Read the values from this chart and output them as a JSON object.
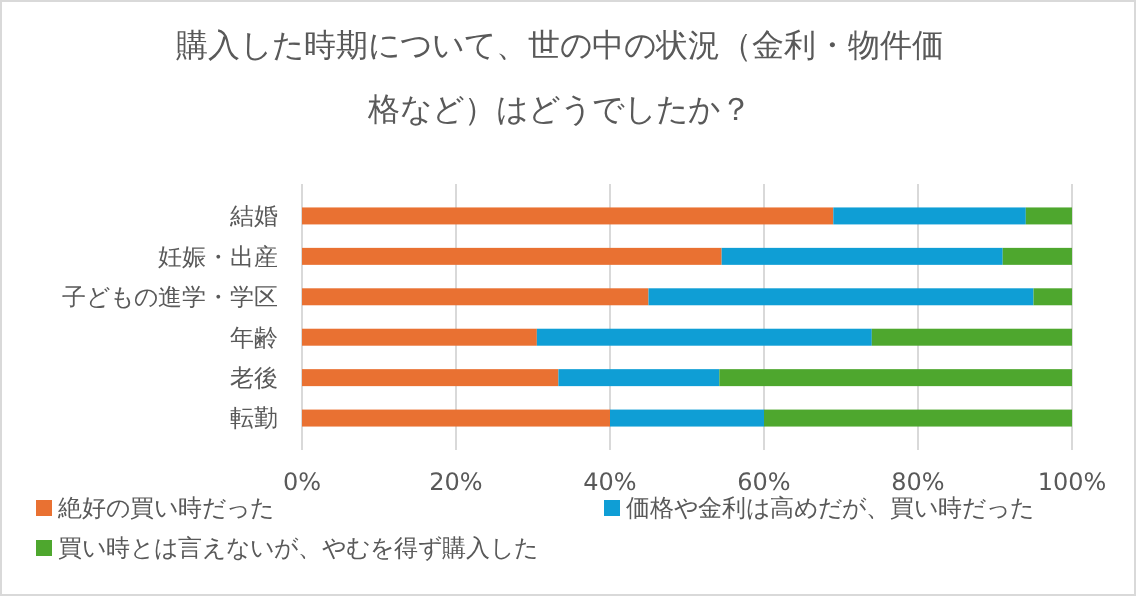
{
  "chart_data": {
    "type": "bar",
    "orientation": "horizontal",
    "stacked": true,
    "title": "購入した時期について、世の中の状況（金利・物件価格など）はどうでしたか？",
    "categories": [
      "結婚",
      "妊娠・出産",
      "子どもの進学・学区",
      "年齢",
      "老後",
      "転勤"
    ],
    "series": [
      {
        "name": "絶好の買い時だった",
        "color": "#e97132",
        "values": [
          69,
          54.5,
          45,
          30.5,
          33.3,
          40
        ]
      },
      {
        "name": "価格や金利は高めだが、買い時だった",
        "color": "#0f9ed5",
        "values": [
          25,
          36.5,
          50,
          43.5,
          20.9,
          20
        ]
      },
      {
        "name": "買い時とは言えないが、やむを得ず購入した",
        "color": "#4ea72e",
        "values": [
          6,
          9,
          5,
          26,
          45.8,
          40
        ]
      }
    ],
    "xlim": [
      0,
      100
    ],
    "xticks": [
      {
        "value": 0,
        "label": "0%"
      },
      {
        "value": 20,
        "label": "20%"
      },
      {
        "value": 40,
        "label": "40%"
      },
      {
        "value": 60,
        "label": "60%"
      },
      {
        "value": 80,
        "label": "80%"
      },
      {
        "value": 100,
        "label": "100%"
      }
    ],
    "grid": "x",
    "legend": "bottom"
  }
}
